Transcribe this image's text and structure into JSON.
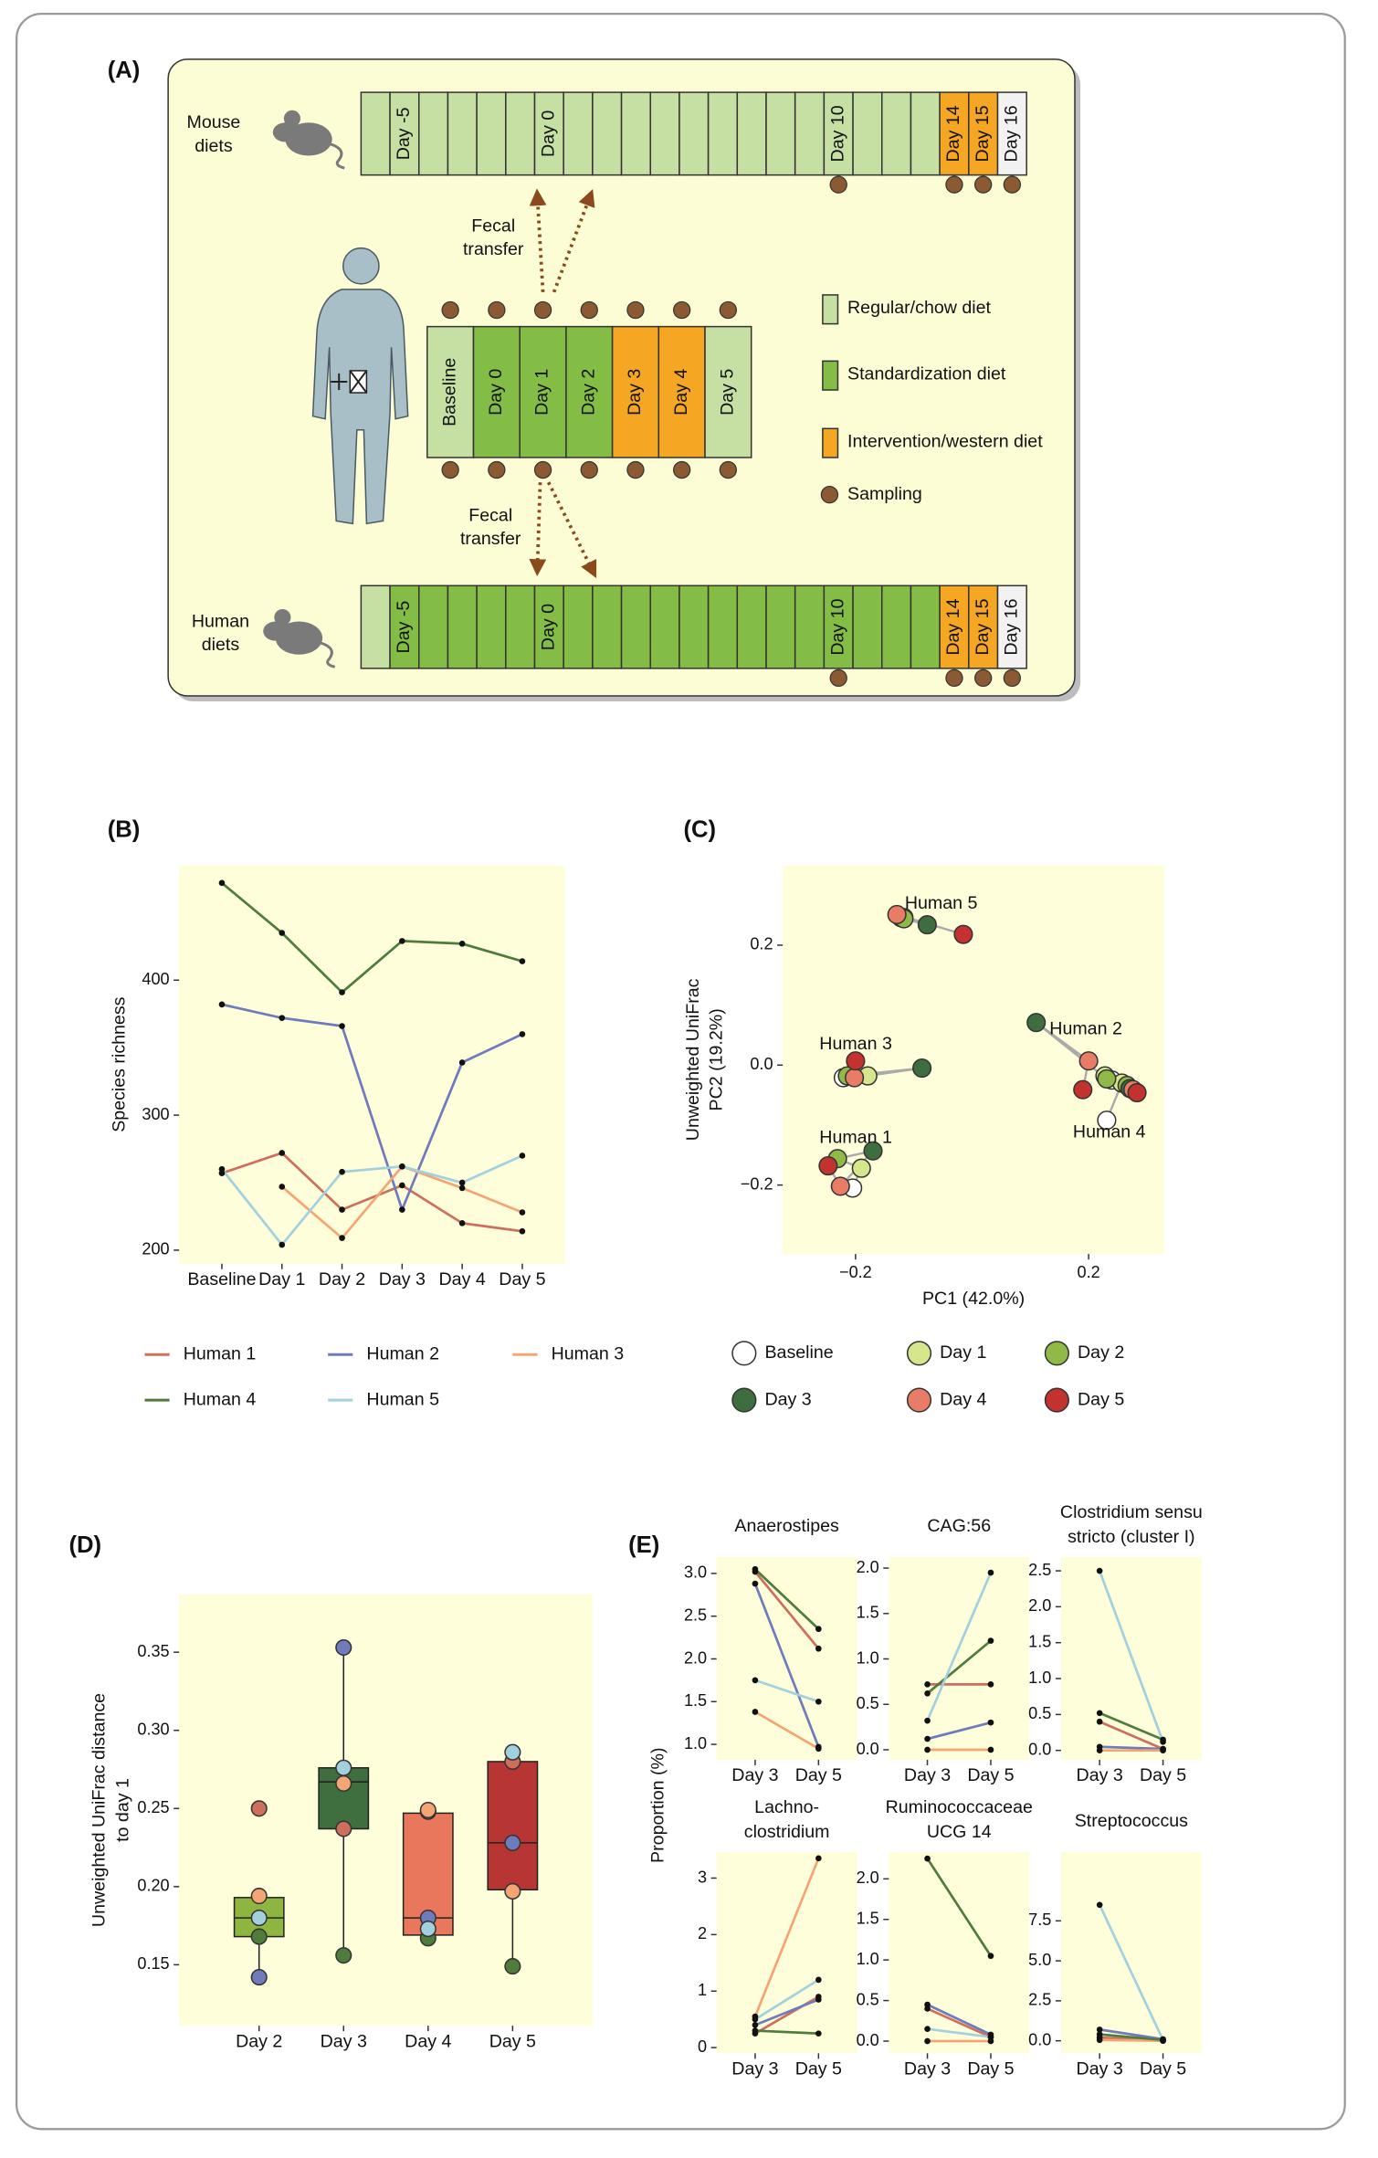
{
  "panel_a": {
    "panel": "(A)",
    "mouse_row": {
      "label": [
        "Mouse",
        "diets"
      ],
      "cells": [
        null,
        "Day -5",
        null,
        null,
        null,
        null,
        "Day 0",
        null,
        null,
        null,
        null,
        null,
        null,
        null,
        null,
        null,
        "Day 10",
        null,
        null,
        null,
        "Day 14",
        "Day 15",
        "Day 16"
      ],
      "cell_colors": [
        "#c6e0a4",
        "#c6e0a4",
        "#c6e0a4",
        "#c6e0a4",
        "#c6e0a4",
        "#c6e0a4",
        "#c6e0a4",
        "#c6e0a4",
        "#c6e0a4",
        "#c6e0a4",
        "#c6e0a4",
        "#c6e0a4",
        "#c6e0a4",
        "#c6e0a4",
        "#c6e0a4",
        "#c6e0a4",
        "#c6e0a4",
        "#c6e0a4",
        "#c6e0a4",
        "#c6e0a4",
        "#f5a623",
        "#f5a623",
        "#f2f2f2"
      ],
      "sampled": [
        false,
        false,
        false,
        false,
        false,
        false,
        false,
        false,
        false,
        false,
        false,
        false,
        false,
        false,
        false,
        false,
        true,
        false,
        false,
        false,
        true,
        true,
        true
      ]
    },
    "human_row": {
      "cells": [
        "Baseline",
        "Day 0",
        "Day 1",
        "Day 2",
        "Day 3",
        "Day 4",
        "Day 5"
      ],
      "cell_colors": [
        "#c6e0a4",
        "#84bd46",
        "#84bd46",
        "#84bd46",
        "#f5a623",
        "#f5a623",
        "#c6e0a4"
      ]
    },
    "human_diets_row": {
      "label": [
        "Human",
        "diets"
      ],
      "cells": [
        null,
        "Day -5",
        null,
        null,
        null,
        null,
        "Day 0",
        null,
        null,
        null,
        null,
        null,
        null,
        null,
        null,
        null,
        "Day 10",
        null,
        null,
        null,
        "Day 14",
        "Day 15",
        "Day 16"
      ],
      "cell_colors": [
        "#c6e0a4",
        "#84bd46",
        "#84bd46",
        "#84bd46",
        "#84bd46",
        "#84bd46",
        "#84bd46",
        "#84bd46",
        "#84bd46",
        "#84bd46",
        "#84bd46",
        "#84bd46",
        "#84bd46",
        "#84bd46",
        "#84bd46",
        "#84bd46",
        "#84bd46",
        "#84bd46",
        "#84bd46",
        "#84bd46",
        "#f5a623",
        "#f5a623",
        "#f2f2f2"
      ],
      "sampled": [
        false,
        false,
        false,
        false,
        false,
        false,
        false,
        false,
        false,
        false,
        false,
        false,
        false,
        false,
        false,
        false,
        true,
        false,
        false,
        false,
        true,
        true,
        true
      ]
    },
    "fecal_transfer_top": [
      "Fecal",
      "transfer"
    ],
    "fecal_transfer_bottom": [
      "Fecal",
      "transfer"
    ],
    "legend": [
      {
        "label": "Regular/chow diet",
        "color": "#c6e0a4",
        "shape": "square"
      },
      {
        "label": "Standardization diet",
        "color": "#84bd46",
        "shape": "square"
      },
      {
        "label": "Intervention/western diet",
        "color": "#f5a623",
        "shape": "square"
      },
      {
        "label": "Sampling",
        "color": "#8c5a32",
        "shape": "circle"
      }
    ]
  },
  "chart_data": [
    {
      "type": "line",
      "panel": "(B)",
      "ylabel": "Species richness",
      "categories": [
        "Baseline",
        "Day 1",
        "Day 2",
        "Day 3",
        "Day 4",
        "Day 5"
      ],
      "ylim": [
        190,
        485
      ],
      "yticks": [
        200,
        300,
        400
      ],
      "background": "#fefedb",
      "series": [
        {
          "name": "Human 1",
          "color": "#cd6f5c",
          "values": [
            257,
            272,
            230,
            248,
            220,
            214
          ]
        },
        {
          "name": "Human 2",
          "color": "#6f7bbb",
          "values": [
            382,
            372,
            366,
            230,
            339,
            360
          ]
        },
        {
          "name": "Human 3",
          "color": "#f4a574",
          "values": [
            null,
            247,
            209,
            262,
            246,
            228
          ]
        },
        {
          "name": "Human 4",
          "color": "#4f7c3c",
          "values": [
            472,
            435,
            391,
            429,
            427,
            414
          ]
        },
        {
          "name": "Human 5",
          "color": "#a3d0df",
          "values": [
            260,
            204,
            258,
            262,
            250,
            270
          ]
        }
      ]
    },
    {
      "type": "scatter",
      "panel": "(C)",
      "xlabel": "PC1 (42.0%)",
      "ylabel": [
        "Unweighted UniFrac",
        "PC2 (19.2%)"
      ],
      "xlim": [
        -0.325,
        0.33
      ],
      "ylim": [
        -0.315,
        0.333
      ],
      "xticks": [
        {
          "value": -0.2,
          "label": "−0.2"
        },
        0.2
      ],
      "yticks": [
        {
          "value": -0.2,
          "label": "−0.2"
        },
        {
          "value": 0,
          "label": "0.0"
        },
        0.2
      ],
      "background": "#fefedb",
      "annotations": [
        "Human 5",
        "Human 3",
        "Human 2",
        "Human 4",
        "Human 1"
      ],
      "series": [
        {
          "name": "Baseline",
          "color": "#ffffff",
          "x": [
            -0.205,
            0.24,
            -0.221,
            0.231,
            -0.117
          ],
          "values": [
            -0.205,
            -0.025,
            -0.021,
            -0.092,
            0.246
          ]
        },
        {
          "name": "Day 1",
          "color": "#d5e68c",
          "x": [
            -0.19,
            0.228,
            -0.179,
            0.257,
            -0.122
          ],
          "values": [
            -0.172,
            -0.018,
            -0.018,
            -0.03,
            0.246
          ]
        },
        {
          "name": "Day 2",
          "color": "#8fba48",
          "x": [
            -0.231,
            0.231,
            -0.214,
            0.266,
            -0.117
          ],
          "values": [
            -0.156,
            -0.023,
            -0.018,
            -0.034,
            0.244
          ]
        },
        {
          "name": "Day 3",
          "color": "#3e6e40",
          "x": [
            -0.17,
            0.11,
            -0.086,
            0.271,
            -0.077
          ],
          "values": [
            -0.143,
            0.071,
            -0.005,
            -0.039,
            0.234
          ]
        },
        {
          "name": "Day 4",
          "color": "#e97c66",
          "x": [
            -0.226,
            0.2,
            -0.202,
            0.276,
            -0.129
          ],
          "values": [
            -0.202,
            0.007,
            -0.021,
            -0.041,
            0.251
          ]
        },
        {
          "name": "Day 5",
          "color": "#c23330",
          "x": [
            -0.247,
            0.19,
            -0.2,
            0.283,
            -0.015
          ],
          "values": [
            -0.168,
            -0.041,
            0.007,
            -0.046,
            0.218
          ]
        }
      ]
    },
    {
      "type": "box",
      "panel": "(D)",
      "ylabel": [
        "Unweighted UniFrac distance",
        "to day 1"
      ],
      "categories": [
        "Day 2",
        "Day 3",
        "Day 4",
        "Day 5"
      ],
      "ylim": [
        0.111,
        0.387
      ],
      "yticks": [
        0.15,
        {
          "value": 0.2,
          "label": "0.20"
        },
        0.25,
        {
          "value": 0.3,
          "label": "0.30"
        },
        0.35
      ],
      "background": "#fefedb",
      "colors": [
        "#8db53f",
        "#3f6e3f",
        "#e8775b",
        "#b73533"
      ],
      "whisker_low": [
        0.142,
        0.156,
        0.166,
        0.149
      ],
      "q1": [
        0.168,
        0.237,
        0.169,
        0.198
      ],
      "median": [
        0.18,
        0.267,
        0.18,
        0.228
      ],
      "q3": [
        0.193,
        0.276,
        0.247,
        0.28
      ],
      "whisker_high": [
        0.193,
        0.353,
        0.249,
        0.286
      ],
      "points": [
        [
          0.25,
          0.142,
          0.194,
          0.168,
          0.18
        ],
        [
          0.237,
          0.353,
          0.266,
          0.156,
          0.276
        ],
        [
          0.248,
          0.18,
          0.249,
          0.167,
          0.173
        ],
        [
          0.28,
          0.228,
          0.197,
          0.149,
          0.286
        ]
      ],
      "point_colors": [
        "#cd6f5c",
        "#6f7bbb",
        "#f4a574",
        "#4f7c3c",
        "#a3d0df"
      ]
    },
    {
      "type": "line",
      "panel": "(E)",
      "ylabel": "Proportion (%)",
      "title": [
        "Anaerostipes"
      ],
      "categories": [
        "Day 3",
        "Day 5"
      ],
      "ylim": [
        0.82,
        3.19
      ],
      "yticks": [
        {
          "value": 1,
          "label": "1.0"
        },
        1.5,
        {
          "value": 2,
          "label": "2.0"
        },
        2.5,
        {
          "value": 3,
          "label": "3.0"
        }
      ],
      "background": "#fefedb",
      "series": [
        {
          "color": "#cd6f5c",
          "values": [
            3.02,
            2.12
          ]
        },
        {
          "color": "#6f7bbb",
          "values": [
            2.88,
            0.97
          ]
        },
        {
          "color": "#f4a574",
          "values": [
            1.38,
            0.95
          ]
        },
        {
          "color": "#4f7c3c",
          "values": [
            3.05,
            2.35
          ]
        },
        {
          "color": "#a3d0df",
          "values": [
            1.75,
            1.5
          ]
        }
      ]
    },
    {
      "type": "line",
      "title": [
        "CAG:56"
      ],
      "categories": [
        "Day 3",
        "Day 5"
      ],
      "ylim": [
        -0.11,
        2.12
      ],
      "yticks": [
        {
          "value": 0,
          "label": "0.0"
        },
        0.5,
        {
          "value": 1,
          "label": "1.0"
        },
        1.5,
        {
          "value": 2,
          "label": "2.0"
        }
      ],
      "background": "#fefedb",
      "series": [
        {
          "color": "#cd6f5c",
          "values": [
            0.72,
            0.72
          ]
        },
        {
          "color": "#6f7bbb",
          "values": [
            0.12,
            0.3
          ]
        },
        {
          "color": "#f4a574",
          "values": [
            0,
            0
          ]
        },
        {
          "color": "#4f7c3c",
          "values": [
            0.62,
            1.2
          ]
        },
        {
          "color": "#a3d0df",
          "values": [
            0.32,
            1.95
          ]
        }
      ]
    },
    {
      "type": "line",
      "title": [
        "Clostridium sensu",
        "stricto (cluster I)"
      ],
      "categories": [
        "Day 3",
        "Day 5"
      ],
      "ylim": [
        -0.13,
        2.69
      ],
      "yticks": [
        {
          "value": 0,
          "label": "0.0"
        },
        0.5,
        {
          "value": 1,
          "label": "1.0"
        },
        1.5,
        {
          "value": 2,
          "label": "2.0"
        },
        2.5
      ],
      "background": "#fefedb",
      "series": [
        {
          "color": "#cd6f5c",
          "values": [
            0.4,
            0.02
          ]
        },
        {
          "color": "#6f7bbb",
          "values": [
            0.05,
            0.02
          ]
        },
        {
          "color": "#f4a574",
          "values": [
            0,
            0
          ]
        },
        {
          "color": "#4f7c3c",
          "values": [
            0.52,
            0.15
          ]
        },
        {
          "color": "#a3d0df",
          "values": [
            2.5,
            0.12
          ]
        }
      ]
    },
    {
      "type": "line",
      "title": [
        "Lachno-",
        "clostridium"
      ],
      "categories": [
        "Day 3",
        "Day 5"
      ],
      "ylim": [
        -0.1,
        3.46
      ],
      "yticks": [
        0,
        1,
        2,
        3
      ],
      "background": "#fefedb",
      "series": [
        {
          "color": "#cd6f5c",
          "values": [
            0.25,
            0.9
          ]
        },
        {
          "color": "#6f7bbb",
          "values": [
            0.4,
            0.85
          ]
        },
        {
          "color": "#f4a574",
          "values": [
            0.55,
            3.35
          ]
        },
        {
          "color": "#4f7c3c",
          "values": [
            0.3,
            0.25
          ]
        },
        {
          "color": "#a3d0df",
          "values": [
            0.5,
            1.2
          ]
        }
      ]
    },
    {
      "type": "line",
      "title": [
        "Ruminococcaceae",
        "UCG 14"
      ],
      "categories": [
        "Day 3",
        "Day 5"
      ],
      "ylim": [
        -0.15,
        2.33
      ],
      "yticks": [
        {
          "value": 0,
          "label": "0.0"
        },
        0.5,
        {
          "value": 1,
          "label": "1.0"
        },
        1.5,
        {
          "value": 2,
          "label": "2.0"
        }
      ],
      "background": "#fefedb",
      "series": [
        {
          "color": "#cd6f5c",
          "values": [
            0.4,
            0.05
          ]
        },
        {
          "color": "#6f7bbb",
          "values": [
            0.45,
            0.08
          ]
        },
        {
          "color": "#f4a574",
          "values": [
            0,
            0
          ]
        },
        {
          "color": "#4f7c3c",
          "values": [
            2.25,
            1.05
          ]
        },
        {
          "color": "#a3d0df",
          "values": [
            0.15,
            0.05
          ]
        }
      ]
    },
    {
      "type": "line",
      "title": [
        "Streptococcus"
      ],
      "categories": [
        "Day 3",
        "Day 5"
      ],
      "ylim": [
        -0.78,
        11.8
      ],
      "yticks": [
        {
          "value": 0,
          "label": "0.0"
        },
        2.5,
        {
          "value": 5,
          "label": "5.0"
        },
        7.5
      ],
      "background": "#fefedb",
      "series": [
        {
          "color": "#cd6f5c",
          "values": [
            0.2,
            0
          ]
        },
        {
          "color": "#6f7bbb",
          "values": [
            0.7,
            0.1
          ]
        },
        {
          "color": "#f4a574",
          "values": [
            0.05,
            0
          ]
        },
        {
          "color": "#4f7c3c",
          "values": [
            0.4,
            0.05
          ]
        },
        {
          "color": "#a3d0df",
          "values": [
            8.5,
            0.05
          ]
        }
      ]
    }
  ]
}
